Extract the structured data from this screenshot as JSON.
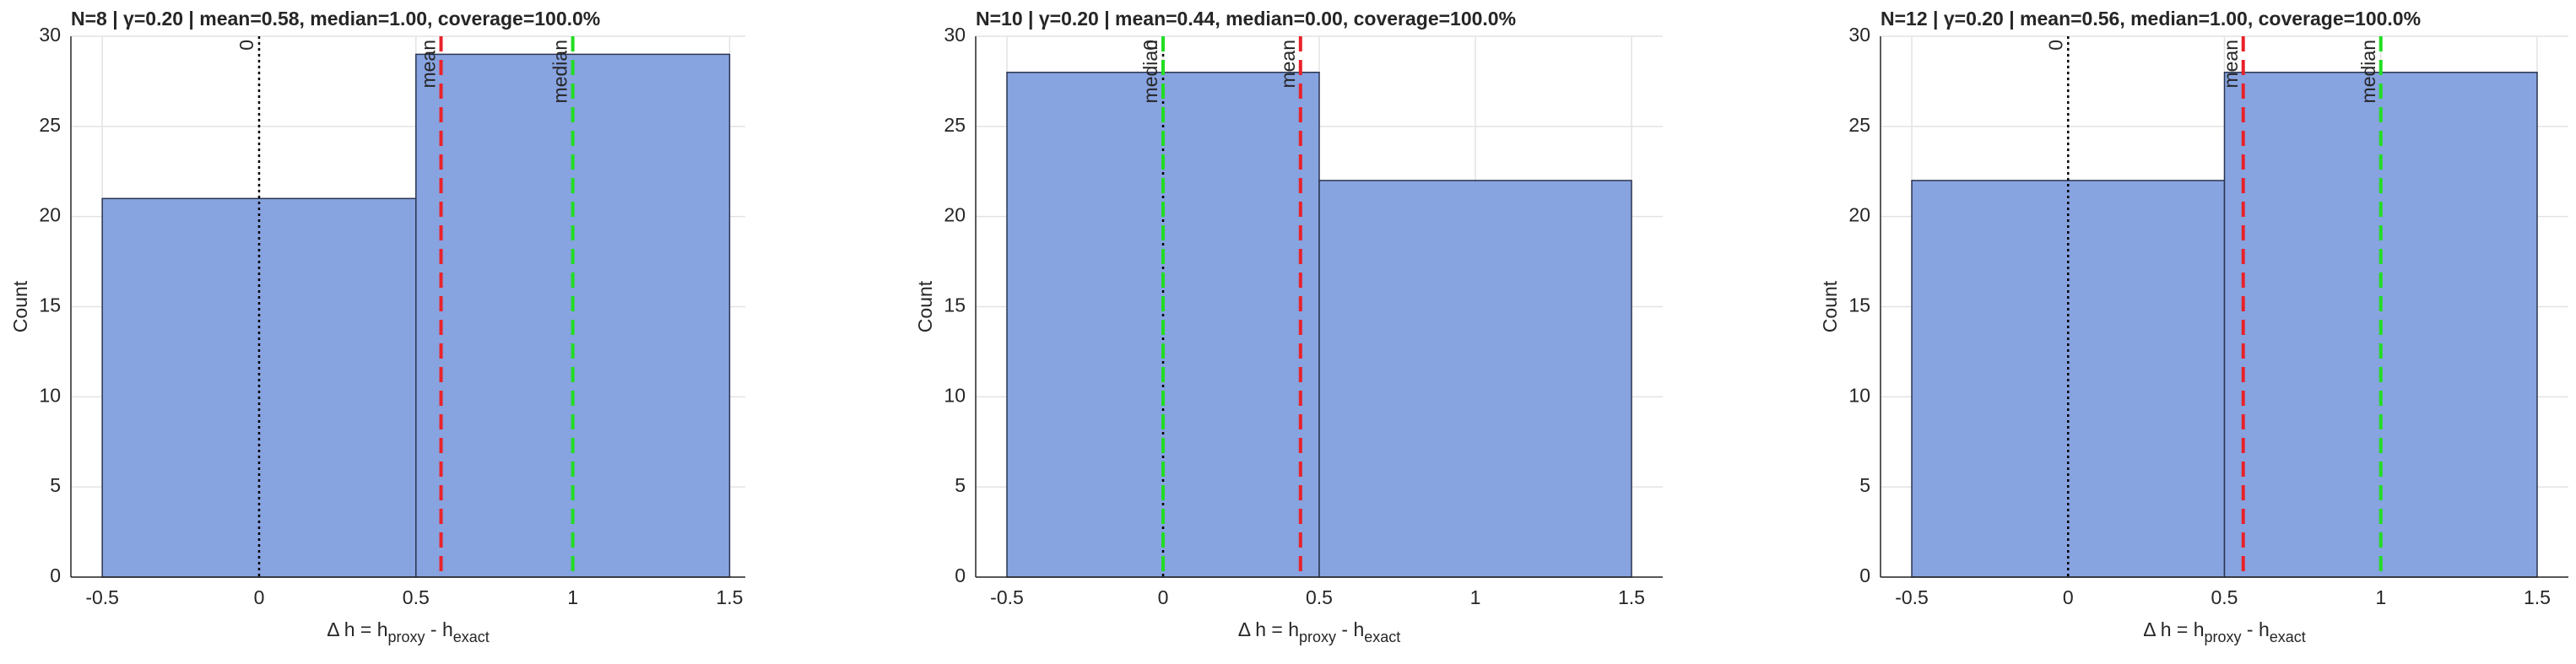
{
  "chart_data": [
    {
      "type": "histogram",
      "title": "N=8  |  γ=0.20  |  mean=0.58, median=1.00, coverage=100.0%",
      "xlabel": [
        "Δ h = h",
        "proxy",
        " - h",
        "exact"
      ],
      "ylabel": "Count",
      "bins": [
        -0.5,
        0.5,
        1.5
      ],
      "values": [
        21,
        29
      ],
      "color": "#87a3e0",
      "xlim": [
        -0.6,
        1.55
      ],
      "ylim": [
        0,
        30
      ],
      "xticks": [
        -0.5,
        0,
        0.5,
        1,
        1.5
      ],
      "yticks": [
        0,
        5,
        10,
        15,
        20,
        25,
        30
      ],
      "grid": true,
      "vlines": [
        {
          "label": "0",
          "value": 0,
          "color": "#000000",
          "style": "dotted"
        },
        {
          "label": "mean",
          "value": 0.58,
          "color": "#e8222a",
          "style": "dashed"
        },
        {
          "label": "median",
          "value": 1,
          "color": "#22dd22",
          "style": "dashed"
        }
      ]
    },
    {
      "type": "histogram",
      "title": "N=10  |  γ=0.20  |  mean=0.44, median=0.00, coverage=100.0%",
      "xlabel": [
        "Δ h = h",
        "proxy",
        " - h",
        "exact"
      ],
      "ylabel": "Count",
      "bins": [
        -0.5,
        0.5,
        1.5
      ],
      "values": [
        28,
        22
      ],
      "color": "#87a3e0",
      "xlim": [
        -0.6,
        1.6
      ],
      "ylim": [
        0,
        30
      ],
      "xticks": [
        -0.5,
        0,
        0.5,
        1,
        1.5
      ],
      "yticks": [
        0,
        5,
        10,
        15,
        20,
        25,
        30
      ],
      "grid": true,
      "vlines": [
        {
          "label": "0",
          "value": 0,
          "color": "#000000",
          "style": "dotted"
        },
        {
          "label": "mean",
          "value": 0.44,
          "color": "#e8222a",
          "style": "dashed"
        },
        {
          "label": "median",
          "value": 0,
          "color": "#22dd22",
          "style": "dashed"
        }
      ]
    },
    {
      "type": "histogram",
      "title": "N=12  |  γ=0.20  |  mean=0.56, median=1.00, coverage=100.0%",
      "xlabel": [
        "Δ h = h",
        "proxy",
        " - h",
        "exact"
      ],
      "ylabel": "Count",
      "bins": [
        -0.5,
        0.5,
        1.5
      ],
      "values": [
        22,
        28
      ],
      "color": "#87a3e0",
      "xlim": [
        -0.6,
        1.6
      ],
      "ylim": [
        0,
        30
      ],
      "xticks": [
        -0.5,
        0,
        0.5,
        1,
        1.5
      ],
      "yticks": [
        0,
        5,
        10,
        15,
        20,
        25,
        30
      ],
      "grid": true,
      "vlines": [
        {
          "label": "0",
          "value": 0,
          "color": "#000000",
          "style": "dotted"
        },
        {
          "label": "mean",
          "value": 0.56,
          "color": "#e8222a",
          "style": "dashed"
        },
        {
          "label": "median",
          "value": 1,
          "color": "#22dd22",
          "style": "dashed"
        }
      ]
    }
  ]
}
